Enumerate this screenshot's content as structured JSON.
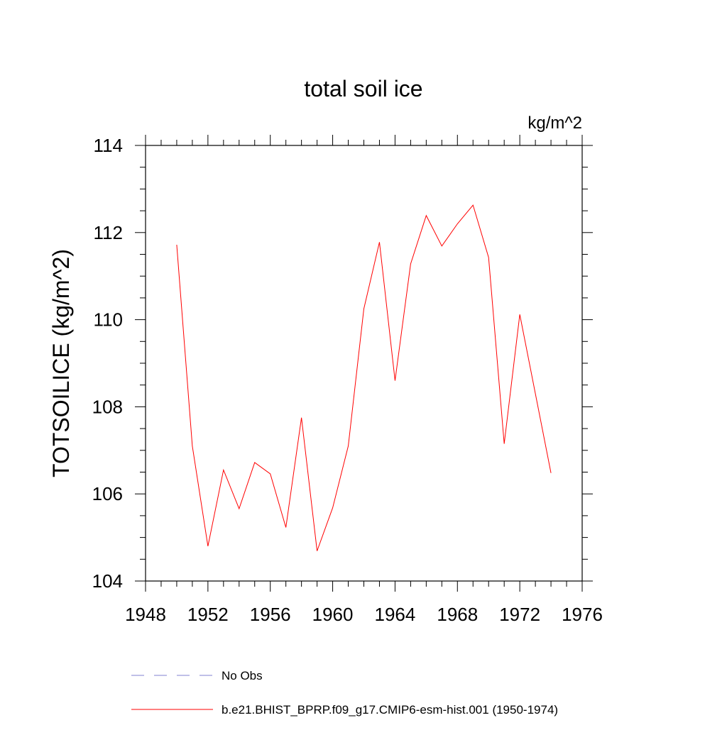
{
  "chart_data": {
    "type": "line",
    "title": "total soil ice",
    "units_label": "kg/m^2",
    "ylabel": "TOTSOILICE  (kg/m^2)",
    "xlabel": "",
    "xlim": [
      1948,
      1976
    ],
    "ylim": [
      104,
      114
    ],
    "x_ticks": [
      1948,
      1952,
      1956,
      1960,
      1964,
      1968,
      1972,
      1976
    ],
    "y_ticks": [
      104,
      106,
      108,
      110,
      112,
      114
    ],
    "x_minor_step": 1,
    "y_minor_step": 0.5,
    "grid": false,
    "legend_position": "bottom",
    "series": [
      {
        "name": "No Obs",
        "color": "#8080d0",
        "dash": "dashed",
        "x": [],
        "y": []
      },
      {
        "name": "b.e21.BHIST_BPRP.f09_g17.CMIP6-esm-hist.001 (1950-1974)",
        "color": "#ff0000",
        "dash": "solid",
        "x": [
          1950,
          1951,
          1952,
          1953,
          1954,
          1955,
          1956,
          1957,
          1958,
          1959,
          1960,
          1961,
          1962,
          1963,
          1964,
          1965,
          1966,
          1967,
          1968,
          1969,
          1970,
          1971,
          1972,
          1973,
          1974
        ],
        "y": [
          111.72,
          107.1,
          104.8,
          106.55,
          105.66,
          106.72,
          106.46,
          105.23,
          107.75,
          104.69,
          105.68,
          107.1,
          110.25,
          111.78,
          108.6,
          111.28,
          112.39,
          111.69,
          112.2,
          112.63,
          111.43,
          107.15,
          110.12,
          108.3,
          106.48
        ]
      }
    ]
  }
}
